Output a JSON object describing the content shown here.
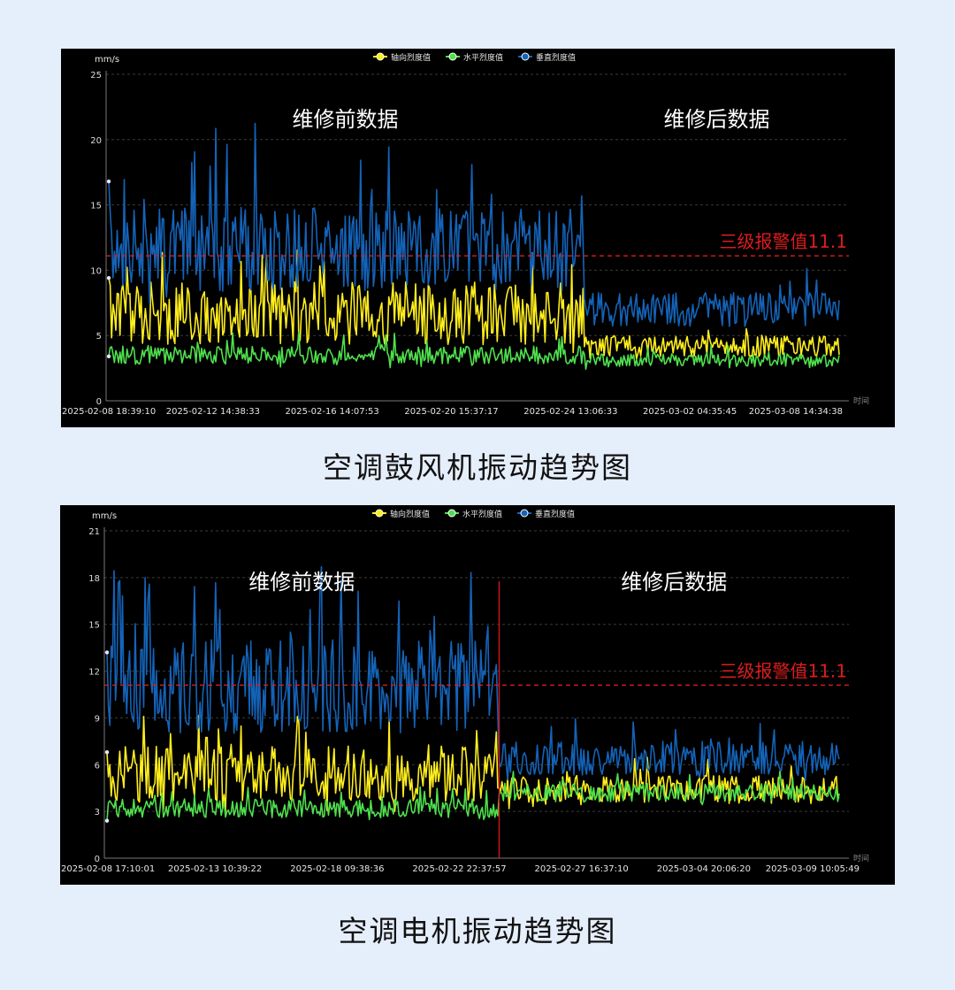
{
  "legend_labels": [
    "轴向烈度值",
    "水平烈度值",
    "垂直烈度值"
  ],
  "colors": {
    "axial": "#ffee1c",
    "horizontal": "#4fe04d",
    "vertical": "#1463b8",
    "alarm": "#dd1c1c",
    "divider": "#c8161a"
  },
  "chart_data": [
    {
      "type": "line",
      "title": "空调鼓风机振动趋势图",
      "unit": "mm/s",
      "xlabel": "时间",
      "ylim": [
        0,
        25
      ],
      "yticks": [
        0,
        5,
        10,
        15,
        20,
        25
      ],
      "x_tick_labels": [
        "2025-02-08 18:39:10",
        "2025-02-12 14:38:33",
        "2025-02-16 14:07:53",
        "2025-02-20 15:37:17",
        "2025-02-24 13:06:33",
        "2025-03-02 04:35:45",
        "2025-03-08 14:34:38"
      ],
      "regions": [
        {
          "label": "维修前数据"
        },
        {
          "label": "维修后数据"
        }
      ],
      "alarm": {
        "label": "三级报警值11.1",
        "value": 11.1
      },
      "split_fraction": 0.65,
      "show_divider": false,
      "series": [
        {
          "name": "轴向烈度值",
          "before": {
            "start": 9.4,
            "mean": 6.7,
            "amp": 2.4,
            "peak": 11.8
          },
          "after": {
            "mean": 4.2,
            "amp": 0.8,
            "peak": 5.6
          }
        },
        {
          "name": "水平烈度值",
          "before": {
            "start": 3.4,
            "mean": 3.5,
            "amp": 0.7,
            "peak": 5.4
          },
          "after": {
            "mean": 3.1,
            "amp": 0.5,
            "peak": 4.3
          }
        },
        {
          "name": "垂直烈度值",
          "before": {
            "start": 16.8,
            "mean": 11.6,
            "amp": 3.2,
            "peak": 21.4
          },
          "after": {
            "mean": 7.0,
            "amp": 1.3,
            "peak": 12.0
          }
        }
      ]
    },
    {
      "type": "line",
      "title": "空调电机振动趋势图",
      "unit": "mm/s",
      "xlabel": "时间",
      "ylim": [
        0,
        21
      ],
      "yticks": [
        0,
        3,
        6,
        9,
        12,
        15,
        18,
        21
      ],
      "x_tick_labels": [
        "2025-02-08 17:10:01",
        "2025-02-13 10:39:22",
        "2025-02-18 09:38:36",
        "2025-02-22 22:37:57",
        "2025-02-27 16:37:10",
        "2025-03-04 20:06:20",
        "2025-03-09 10:05:49"
      ],
      "regions": [
        {
          "label": "维修前数据"
        },
        {
          "label": "维修后数据"
        }
      ],
      "alarm": {
        "label": "三级报警值11.1",
        "value": 11.1
      },
      "split_fraction": 0.535,
      "show_divider": true,
      "series": [
        {
          "name": "轴向烈度值",
          "before": {
            "start": 6.8,
            "mean": 5.4,
            "amp": 1.8,
            "peak": 9.2
          },
          "after": {
            "mean": 4.4,
            "amp": 0.9,
            "peak": 6.5
          }
        },
        {
          "name": "水平烈度值",
          "before": {
            "start": 2.4,
            "mean": 3.2,
            "amp": 0.6,
            "peak": 4.6
          },
          "after": {
            "mean": 4.2,
            "amp": 0.6,
            "peak": 5.6
          }
        },
        {
          "name": "垂直烈度值",
          "before": {
            "start": 13.2,
            "mean": 11.0,
            "amp": 3.0,
            "peak": 19.1
          },
          "after": {
            "mean": 6.4,
            "amp": 1.1,
            "peak": 9.2
          }
        }
      ]
    }
  ]
}
